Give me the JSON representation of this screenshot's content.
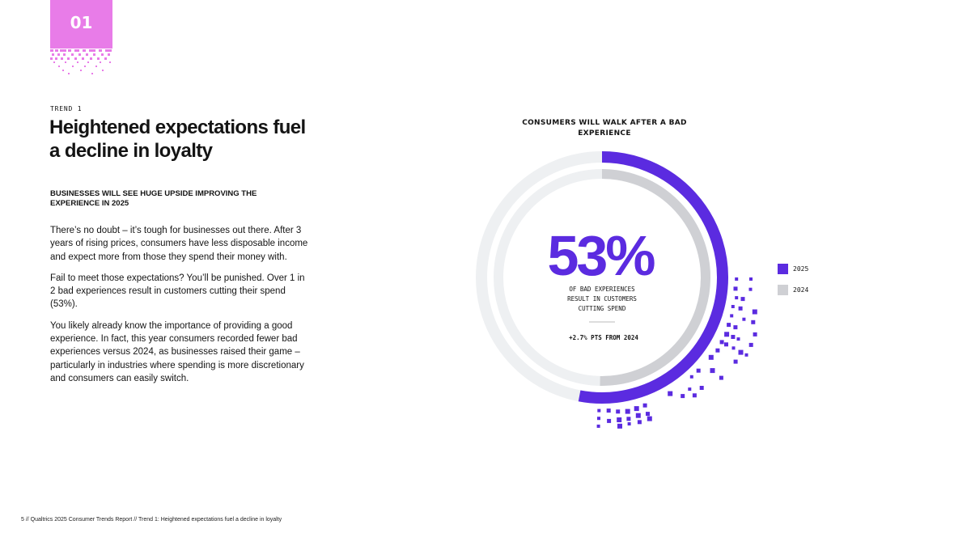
{
  "page_badge": "01",
  "eyebrow": "TREND 1",
  "title": "Heightened expectations fuel a decline in loyalty",
  "subheading": "BUSINESSES WILL SEE HUGE UPSIDE IMPROVING THE EXPERIENCE IN 2025",
  "paragraphs": [
    "There’s no doubt – it’s tough for businesses out there. After 3 years of rising prices, consumers have less disposable income and expect more from those they spend their money with.",
    "Fail to meet those expectations? You’ll be punished. Over 1 in 2 bad experiences result in customers cutting their spend (53%).",
    "You likely already know the importance of providing a good experience. In fact, this year consumers recorded fewer bad experiences versus 2024, as businesses raised their game – particularly in industries where spending is more discretionary and consumers can easily switch."
  ],
  "footer": "5 // Qualtrics 2025 Consumer Trends Report // Trend 1: Heightened expectations fuel a decline in loyalty",
  "colors": {
    "badge": "#e87ce8",
    "series_2025": "#5b2be0",
    "series_2024": "#cfd0d4",
    "track": "#eef0f2"
  },
  "chart_data": {
    "type": "pie",
    "title": "CONSUMERS WILL WALK AFTER A BAD EXPERIENCE",
    "series": [
      {
        "name": "2025",
        "value": 53,
        "color": "#5b2be0"
      },
      {
        "name": "2024",
        "value": 50.3,
        "color": "#cfd0d4"
      }
    ],
    "center_value": "53%",
    "center_label": "OF BAD EXPERIENCES RESULT IN CUSTOMERS CUTTING SPEND",
    "change_label": "+2.7% PTS FROM 2024",
    "legend_position": "right"
  }
}
